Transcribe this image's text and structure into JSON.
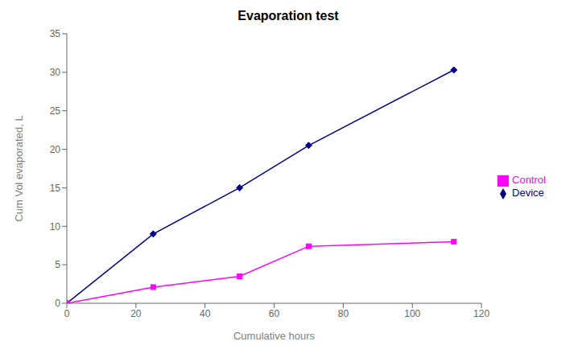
{
  "chart_data": {
    "type": "line",
    "title": "Evaporation test",
    "x_label": "Cumulative hours",
    "y_label": "Cum Vol evaporated, L",
    "x": [
      0,
      25,
      50,
      70,
      112
    ],
    "series": [
      {
        "name": "Device",
        "color": "#00008B",
        "marker": "diamond",
        "line_style": "solid",
        "values": [
          0,
          9,
          15,
          20.5,
          30.3
        ]
      },
      {
        "name": "Control",
        "color": "#FF00FF",
        "marker": "square",
        "line_style": "solid",
        "values": [
          0,
          2.1,
          3.5,
          7.4,
          8.0
        ]
      }
    ],
    "xlim": [
      0,
      120
    ],
    "ylim": [
      0,
      35
    ],
    "xticks": [
      0,
      20,
      40,
      60,
      80,
      100,
      120
    ],
    "yticks": [
      0,
      5,
      10,
      15,
      20,
      25,
      30,
      35
    ],
    "grid": false,
    "legend": "right"
  }
}
